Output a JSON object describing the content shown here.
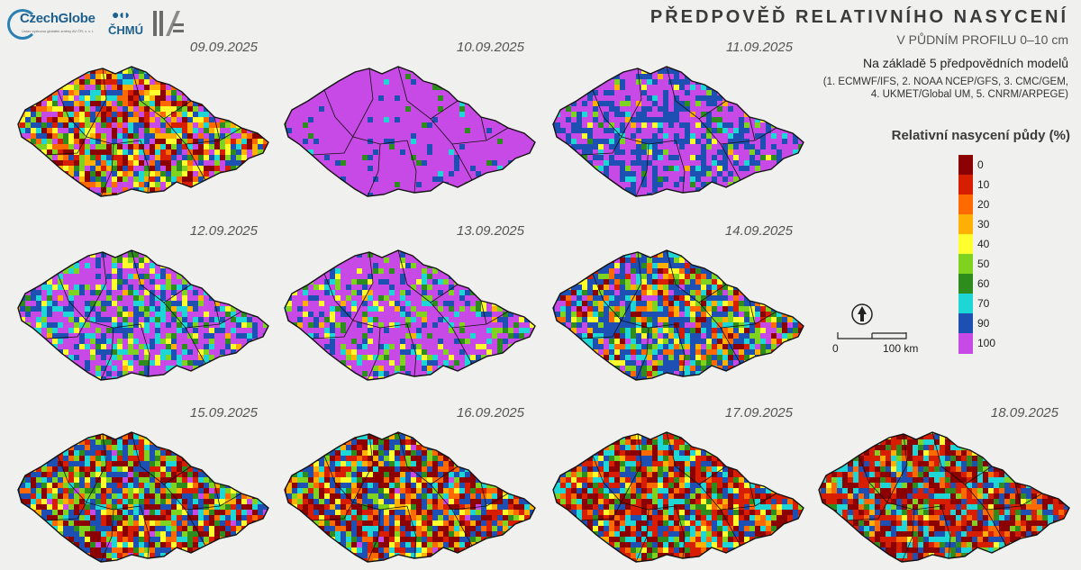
{
  "header": {
    "title": "PŘEDPOVĚĎ RELATIVNÍHO NASYCENÍ",
    "subtitle": "V PŮDNÍM PROFILU 0–10 cm",
    "models_intro": "Na základě 5 předpovědních modelů",
    "models": [
      "(1. ECMWF/IFS, 2. NOAA NCEP/GFS, 3. CMC/GEM,",
      "4. UKMET/Global UM, 5. CNRM/ARPEGE)"
    ]
  },
  "logos": {
    "czechglobe": "CzechGlobe",
    "czechglobe_sub": "Ústav výzkumu globální změny AV ČR, v. v. i.",
    "chmu": "ČHMÚ"
  },
  "legend": {
    "title": "Relativní nasycení půdy (%)",
    "bins": [
      {
        "label": "0",
        "color": "#8b0000"
      },
      {
        "label": "10",
        "color": "#d71e00"
      },
      {
        "label": "20",
        "color": "#ff6a00"
      },
      {
        "label": "30",
        "color": "#ffb000"
      },
      {
        "label": "40",
        "color": "#ffff2e"
      },
      {
        "label": "50",
        "color": "#7fd320"
      },
      {
        "label": "60",
        "color": "#2e8b1e"
      },
      {
        "label": "70",
        "color": "#1fd6d6"
      },
      {
        "label": "90",
        "color": "#1e50b4"
      },
      {
        "label": "100",
        "color": "#c84ae6"
      }
    ]
  },
  "scale": {
    "zero": "0",
    "end": "100 km"
  },
  "panels": [
    {
      "date": "09.09.2025",
      "mix": [
        0.12,
        0.1,
        0.1,
        0.1,
        0.1,
        0.08,
        0.06,
        0.08,
        0.12,
        0.14
      ]
    },
    {
      "date": "10.09.2025",
      "mix": [
        0.0,
        0.0,
        0.0,
        0.0,
        0.0,
        0.0,
        0.02,
        0.02,
        0.06,
        0.9
      ]
    },
    {
      "date": "11.09.2025",
      "mix": [
        0.0,
        0.0,
        0.0,
        0.02,
        0.03,
        0.03,
        0.03,
        0.05,
        0.34,
        0.5
      ]
    },
    {
      "date": "12.09.2025",
      "mix": [
        0.0,
        0.0,
        0.0,
        0.02,
        0.06,
        0.08,
        0.06,
        0.14,
        0.2,
        0.44
      ]
    },
    {
      "date": "13.09.2025",
      "mix": [
        0.0,
        0.0,
        0.0,
        0.02,
        0.06,
        0.08,
        0.06,
        0.06,
        0.1,
        0.62
      ]
    },
    {
      "date": "14.09.2025",
      "mix": [
        0.06,
        0.06,
        0.06,
        0.06,
        0.06,
        0.08,
        0.06,
        0.1,
        0.34,
        0.12
      ]
    },
    {
      "date": "15.09.2025",
      "mix": [
        0.18,
        0.12,
        0.06,
        0.04,
        0.06,
        0.12,
        0.08,
        0.1,
        0.22,
        0.02
      ]
    },
    {
      "date": "16.09.2025",
      "mix": [
        0.22,
        0.14,
        0.1,
        0.08,
        0.06,
        0.06,
        0.06,
        0.08,
        0.18,
        0.02
      ]
    },
    {
      "date": "17.09.2025",
      "mix": [
        0.22,
        0.2,
        0.1,
        0.04,
        0.04,
        0.06,
        0.08,
        0.12,
        0.14,
        0.0
      ]
    },
    {
      "date": "18.09.2025",
      "mix": [
        0.26,
        0.22,
        0.08,
        0.02,
        0.02,
        0.04,
        0.06,
        0.16,
        0.14,
        0.0
      ]
    }
  ]
}
